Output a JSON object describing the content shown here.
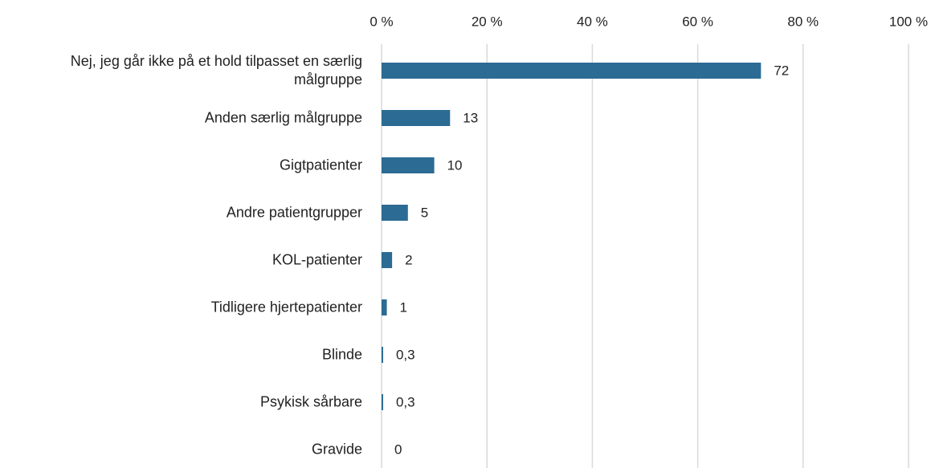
{
  "chart_data": {
    "type": "bar",
    "orientation": "horizontal",
    "categories": [
      "Nej, jeg går ikke på et hold tilpasset en særlig målgruppe",
      "Anden særlig målgruppe",
      "Gigtpatienter",
      "Andre patientgrupper",
      "KOL-patienter",
      "Tidligere hjertepatienter",
      "Blinde",
      "Psykisk sårbare",
      "Gravide"
    ],
    "values": [
      72,
      13,
      10,
      5,
      2,
      1,
      0.3,
      0.3,
      0
    ],
    "value_labels": [
      "72",
      "13",
      "10",
      "5",
      "2",
      "1",
      "0,3",
      "0,3",
      "0"
    ],
    "color": "#2c6b93",
    "xlim": [
      0,
      100
    ],
    "xticks": [
      {
        "value": 0,
        "label": "0 %"
      },
      {
        "value": 20,
        "label": "20 %"
      },
      {
        "value": 40,
        "label": "40 %"
      },
      {
        "value": 60,
        "label": "60 %"
      },
      {
        "value": 80,
        "label": "80 %"
      },
      {
        "value": 100,
        "label": "100 %"
      }
    ],
    "grid": true
  }
}
